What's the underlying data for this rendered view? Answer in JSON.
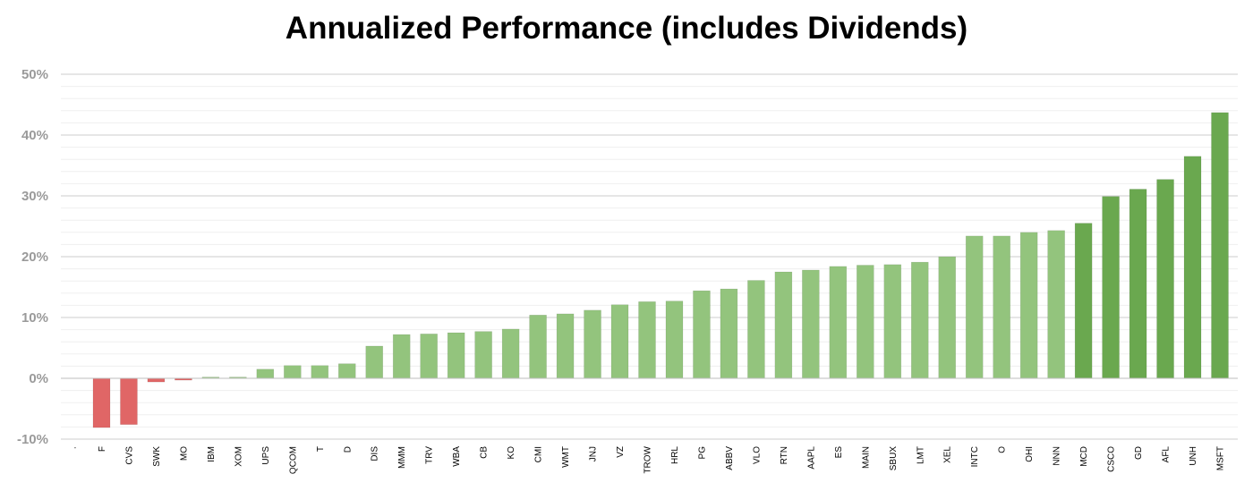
{
  "chart_data": {
    "type": "bar",
    "title": "Annualized Performance (includes Dividends)",
    "xlabel": "",
    "ylabel": "",
    "ylim": [
      -10,
      50
    ],
    "y_ticks": [
      "50%",
      "40%",
      "30%",
      "20%",
      "10%",
      "0%",
      "-10%"
    ],
    "y_tick_values": [
      50,
      40,
      30,
      20,
      10,
      0,
      -10
    ],
    "grid": true,
    "minor_grid": true,
    "categories": [
      "·",
      "F",
      "CVS",
      "SWK",
      "MO",
      "IBM",
      "XOM",
      "UPS",
      "QCOM",
      "T",
      "D",
      "DIS",
      "MMM",
      "TRV",
      "WBA",
      "CB",
      "KO",
      "CMI",
      "WMT",
      "JNJ",
      "VZ",
      "TROW",
      "HRL",
      "PG",
      "ABBV",
      "VLO",
      "RTN",
      "AAPL",
      "ES",
      "MAIN",
      "SBUX",
      "LMT",
      "XEL",
      "INTC",
      "O",
      "OHI",
      "NNN",
      "MCD",
      "CSCO",
      "GD",
      "AFL",
      "UNH",
      "MSFT"
    ],
    "values": [
      0,
      -8.1,
      -7.6,
      -0.6,
      -0.3,
      0.2,
      0.2,
      1.5,
      2.1,
      2.1,
      2.4,
      5.3,
      7.2,
      7.3,
      7.5,
      7.7,
      8.1,
      10.4,
      10.6,
      11.2,
      12.1,
      12.6,
      12.7,
      14.4,
      14.7,
      16.1,
      17.5,
      17.8,
      18.4,
      18.6,
      18.7,
      19.1,
      20.0,
      23.4,
      23.4,
      24.0,
      24.3,
      25.5,
      29.9,
      31.1,
      32.7,
      36.5,
      43.7
    ],
    "colors": {
      "negative": "#e06666",
      "positive": "#93c47d",
      "top": "#6aa84f",
      "gridline": "#cccccc",
      "minor_gridline": "#efefef"
    }
  }
}
